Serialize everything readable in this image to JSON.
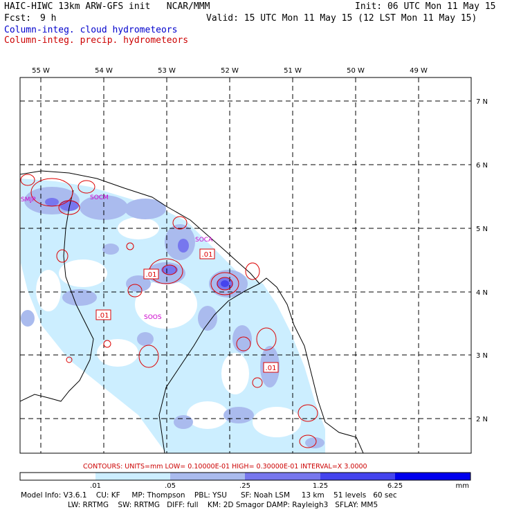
{
  "header": {
    "title": "HAIC-HIWC 13km ARW-GFS init   NCAR/MMM",
    "init": "Init: 06 UTC Mon 11 May 15",
    "fcst_label": "Fcst:",
    "fcst_value": "9 h",
    "valid": "Valid: 15 UTC Mon 11 May 15 (12 LST Mon 11 May 15)",
    "field1": "Column-integ. cloud hydrometeors",
    "field2": "Column-integ. precip. hydrometeors"
  },
  "map": {
    "lon_labels": [
      "55 W",
      "54 W",
      "53 W",
      "52 W",
      "51 W",
      "50 W",
      "49 W"
    ],
    "lat_labels": [
      "7 N",
      "6 N",
      "5 N",
      "4 N",
      "3 N",
      "2 N"
    ],
    "stations": [
      "SMJP",
      "SOCM",
      "SOCA",
      "SOOS"
    ],
    "contour_labels": [
      ".01",
      ".01",
      ".01",
      ".01"
    ]
  },
  "contour_info": "CONTOURS:  UNITS=mm  LOW= 0.10000E-01  HIGH= 0.30000E-01  INTERVAL=X  3.0000",
  "colorbar": {
    "ticks": [
      ".01",
      ".05",
      ".25",
      "1.25",
      "6.25"
    ],
    "units": "mm",
    "colors": [
      "#ffffff",
      "#cceeff",
      "#aabbee",
      "#7777ee",
      "#4444ee",
      "#0000ee"
    ]
  },
  "footer": {
    "line1": "Model Info: V3.6.1    CU: KF     MP: Thompson    PBL: YSU      SF: Noah LSM     13 km    51 levels   60 sec",
    "line2": "LW: RRTMG    SW: RRTMG   DIFF: full    KM: 2D Smagor DAMP: Rayleigh3   SFLAY: MM5"
  }
}
